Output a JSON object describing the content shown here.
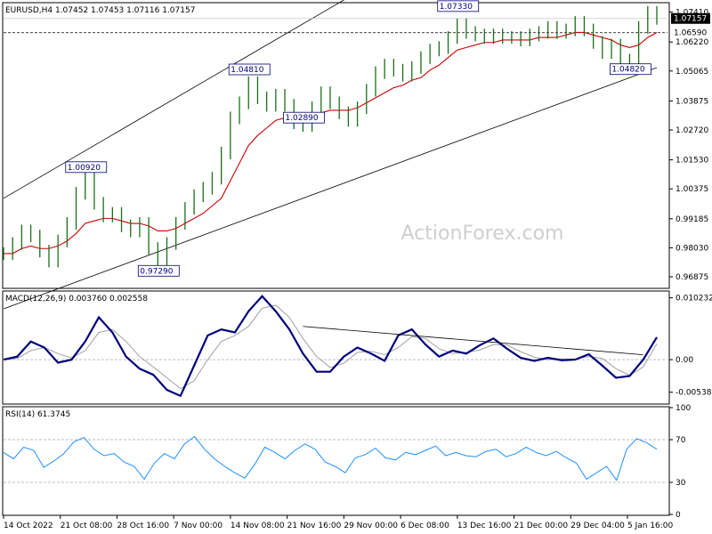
{
  "header": {
    "symbol_text": "EURUSD,H4  1.07452 1.07453 1.07116 1.07157",
    "macd_text": "MACD(12,26,9) 0.003760 0.002558",
    "rsi_text": "RSI(14) 61.3745",
    "watermark": "ActionForex.com"
  },
  "colors": {
    "price_bars": "#1a6f1a",
    "sma": "#cc0000",
    "macd_main": "#00007a",
    "macd_signal": "#a0a0a0",
    "rsi": "#1e90ff",
    "channel": "#000000",
    "grid": "#c8c8c8"
  },
  "chart_data": [
    {
      "type": "line",
      "name": "EURUSD H4 price",
      "ylim": [
        0.9645,
        1.0775
      ],
      "price_axis_ticks": [
        "1.07410",
        "1.06220",
        "1.05065",
        "1.03875",
        "1.02720",
        "1.01530",
        "1.00375",
        "0.99185",
        "0.98030",
        "0.96875"
      ],
      "current_price_label": "1.07157",
      "level_line_label": "1.06590",
      "annotations": [
        {
          "text": "1.00920",
          "value": 1.0092
        },
        {
          "text": "0.97290",
          "value": 0.9729
        },
        {
          "text": "1.04810",
          "value": 1.0481
        },
        {
          "text": "1.02890",
          "value": 1.0289
        },
        {
          "text": "1.07330",
          "value": 1.0733
        },
        {
          "text": "1.04820",
          "value": 1.0482
        }
      ],
      "close_points": [
        0.978,
        0.982,
        0.987,
        0.985,
        0.979,
        0.975,
        0.983,
        0.99,
        1.002,
        1.009,
        0.998,
        0.993,
        0.994,
        0.989,
        0.987,
        0.99,
        0.98,
        0.973,
        0.982,
        0.99,
        0.996,
        1.001,
        1.004,
        1.008,
        1.018,
        1.032,
        1.038,
        1.046,
        1.04,
        1.037,
        1.041,
        1.037,
        1.03,
        1.029,
        1.036,
        1.042,
        1.038,
        1.034,
        1.031,
        1.036,
        1.043,
        1.05,
        1.053,
        1.051,
        1.049,
        1.052,
        1.056,
        1.059,
        1.06,
        1.064,
        1.069,
        1.066,
        1.065,
        1.064,
        1.065,
        1.064,
        1.064,
        1.063,
        1.065,
        1.066,
        1.068,
        1.066,
        1.067,
        1.07,
        1.067,
        1.062,
        1.058,
        1.061,
        1.055,
        1.053,
        1.068,
        1.074,
        1.0716
      ],
      "sma_points": [
        0.978,
        0.978,
        0.98,
        0.981,
        0.98,
        0.98,
        0.981,
        0.983,
        0.986,
        0.99,
        0.991,
        0.992,
        0.992,
        0.991,
        0.99,
        0.99,
        0.989,
        0.987,
        0.987,
        0.988,
        0.99,
        0.992,
        0.994,
        0.997,
        1.0,
        1.007,
        1.014,
        1.021,
        1.025,
        1.028,
        1.031,
        1.032,
        1.031,
        1.031,
        1.032,
        1.034,
        1.035,
        1.035,
        1.035,
        1.036,
        1.038,
        1.04,
        1.042,
        1.044,
        1.045,
        1.047,
        1.048,
        1.051,
        1.053,
        1.056,
        1.059,
        1.06,
        1.061,
        1.062,
        1.062,
        1.063,
        1.063,
        1.063,
        1.063,
        1.064,
        1.064,
        1.064,
        1.065,
        1.066,
        1.066,
        1.065,
        1.064,
        1.063,
        1.061,
        1.06,
        1.061,
        1.064,
        1.066
      ]
    },
    {
      "type": "line",
      "name": "MACD(12,26,9)",
      "ylim": [
        -0.0072,
        0.0112
      ],
      "axis_ticks": [
        "0.010232",
        "0.00",
        "-0.005389"
      ],
      "main_points": [
        0.0,
        0.0005,
        0.003,
        0.002,
        -0.0005,
        0.0,
        0.003,
        0.007,
        0.0045,
        0.0005,
        -0.0015,
        -0.0025,
        -0.005,
        -0.006,
        -0.001,
        0.004,
        0.005,
        0.0045,
        0.008,
        0.0105,
        0.008,
        0.005,
        0.001,
        -0.002,
        -0.002,
        0.0005,
        0.002,
        0.001,
        -0.0002,
        0.004,
        0.005,
        0.0025,
        0.0005,
        0.0015,
        0.001,
        0.0024,
        0.0035,
        0.0018,
        0.0003,
        -0.0002,
        0.0003,
        -0.0001,
        0.0,
        0.0009,
        -0.001,
        -0.003,
        -0.0027,
        0.0,
        0.0037
      ],
      "signal_points": [
        0.0,
        0.0002,
        0.0015,
        0.002,
        0.001,
        0.0003,
        0.0015,
        0.0045,
        0.005,
        0.003,
        0.0005,
        -0.0012,
        -0.003,
        -0.0048,
        -0.0035,
        0.0,
        0.003,
        0.004,
        0.0055,
        0.0085,
        0.009,
        0.007,
        0.0035,
        0.0005,
        -0.0013,
        -0.0006,
        0.0012,
        0.0014,
        0.0008,
        0.002,
        0.0038,
        0.0035,
        0.0018,
        0.001,
        0.0012,
        0.0016,
        0.0025,
        0.0024,
        0.0013,
        0.0004,
        0.0,
        0.0001,
        0.0001,
        0.0005,
        0.0002,
        -0.0015,
        -0.0026,
        -0.0012,
        0.0026
      ]
    },
    {
      "type": "line",
      "name": "RSI(14)",
      "ylim": [
        0,
        100
      ],
      "axis_ticks": [
        "100",
        "70",
        "30",
        "0"
      ],
      "points": [
        58,
        52,
        63,
        60,
        44,
        50,
        57,
        68,
        72,
        61,
        55,
        57,
        49,
        45,
        33,
        48,
        57,
        52,
        66,
        73,
        61,
        52,
        45,
        39,
        34,
        47,
        63,
        58,
        52,
        60,
        66,
        61,
        49,
        45,
        39,
        53,
        56,
        62,
        53,
        51,
        58,
        56,
        60,
        64,
        55,
        58,
        55,
        54,
        59,
        61,
        54,
        57,
        63,
        58,
        55,
        59,
        53,
        48,
        33,
        39,
        45,
        32,
        61,
        71,
        67,
        61
      ],
      "level_lines": [
        70,
        30
      ]
    }
  ],
  "x_axis_labels": [
    "14 Oct 2022",
    "21 Oct 08:00",
    "28 Oct 16:00",
    "7 Nov 00:00",
    "14 Nov 08:00",
    "21 Nov 16:00",
    "29 Nov 00:00",
    "6 Dec 08:00",
    "13 Dec 16:00",
    "21 Dec 00:00",
    "29 Dec 04:00",
    "5 Jan 16:00"
  ]
}
